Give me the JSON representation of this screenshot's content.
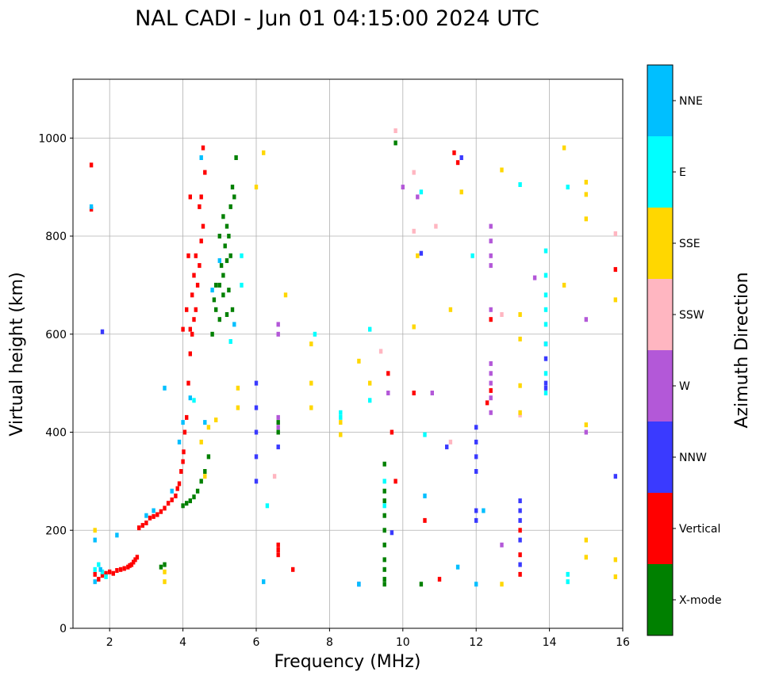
{
  "chart_data": {
    "type": "scatter",
    "title": "NAL CADI - Jun 01 04:15:00 2024 UTC",
    "xlabel": "Frequency (MHz)",
    "ylabel": "Virtual height (km)",
    "xlim": [
      1,
      16
    ],
    "ylim": [
      0,
      1120
    ],
    "xticks": [
      2,
      4,
      6,
      8,
      10,
      12,
      14,
      16
    ],
    "yticks": [
      0,
      200,
      400,
      600,
      800,
      1000
    ],
    "grid": true,
    "colorbar": {
      "label": "Azimuth Direction",
      "categories": [
        {
          "name": "X-mode",
          "color": "#008000"
        },
        {
          "name": "Vertical",
          "color": "#ff0000"
        },
        {
          "name": "NNW",
          "color": "#3a3aff"
        },
        {
          "name": "W",
          "color": "#b358d8"
        },
        {
          "name": "SSW",
          "color": "#ffb6c1"
        },
        {
          "name": "SSE",
          "color": "#ffd700"
        },
        {
          "name": "E",
          "color": "#00ffff"
        },
        {
          "name": "NNE",
          "color": "#00bfff"
        }
      ]
    },
    "series": [
      {
        "name": "Vertical",
        "points": [
          [
            1.5,
            945
          ],
          [
            1.5,
            855
          ],
          [
            1.6,
            110
          ],
          [
            1.7,
            100
          ],
          [
            1.8,
            108
          ],
          [
            1.9,
            112
          ],
          [
            2.0,
            115
          ],
          [
            2.1,
            112
          ],
          [
            2.2,
            118
          ],
          [
            2.3,
            120
          ],
          [
            2.4,
            122
          ],
          [
            2.5,
            125
          ],
          [
            2.55,
            128
          ],
          [
            2.6,
            130
          ],
          [
            2.65,
            135
          ],
          [
            2.7,
            140
          ],
          [
            2.75,
            145
          ],
          [
            2.8,
            205
          ],
          [
            2.9,
            210
          ],
          [
            3.0,
            215
          ],
          [
            3.1,
            225
          ],
          [
            3.2,
            228
          ],
          [
            3.3,
            232
          ],
          [
            3.4,
            238
          ],
          [
            3.5,
            245
          ],
          [
            3.6,
            255
          ],
          [
            3.7,
            262
          ],
          [
            3.8,
            270
          ],
          [
            3.85,
            285
          ],
          [
            3.9,
            295
          ],
          [
            3.95,
            320
          ],
          [
            4.0,
            340
          ],
          [
            4.02,
            360
          ],
          [
            4.05,
            400
          ],
          [
            4.1,
            430
          ],
          [
            4.15,
            500
          ],
          [
            4.2,
            560
          ],
          [
            4.25,
            600
          ],
          [
            4.3,
            630
          ],
          [
            4.35,
            650
          ],
          [
            4.4,
            700
          ],
          [
            4.45,
            740
          ],
          [
            4.5,
            790
          ],
          [
            4.55,
            820
          ],
          [
            4.5,
            880
          ],
          [
            4.6,
            930
          ],
          [
            4.55,
            980
          ],
          [
            4.2,
            880
          ],
          [
            4.3,
            720
          ],
          [
            4.1,
            650
          ],
          [
            4.25,
            680
          ],
          [
            4.35,
            760
          ],
          [
            4.45,
            860
          ],
          [
            4.0,
            610
          ],
          [
            4.15,
            760
          ],
          [
            4.2,
            610
          ],
          [
            6.6,
            160
          ],
          [
            6.6,
            150
          ],
          [
            6.6,
            170
          ],
          [
            7.0,
            120
          ],
          [
            9.6,
            520
          ],
          [
            9.7,
            400
          ],
          [
            9.8,
            300
          ],
          [
            10.3,
            480
          ],
          [
            10.6,
            220
          ],
          [
            11.0,
            100
          ],
          [
            11.4,
            970
          ],
          [
            11.5,
            950
          ],
          [
            12.3,
            460
          ],
          [
            12.4,
            630
          ],
          [
            12.4,
            485
          ],
          [
            13.2,
            150
          ],
          [
            13.2,
            110
          ],
          [
            13.2,
            200
          ],
          [
            15.8,
            732
          ]
        ]
      },
      {
        "name": "X-mode",
        "points": [
          [
            3.4,
            125
          ],
          [
            3.5,
            130
          ],
          [
            4.0,
            250
          ],
          [
            4.1,
            255
          ],
          [
            4.2,
            260
          ],
          [
            4.3,
            268
          ],
          [
            4.4,
            280
          ],
          [
            4.5,
            300
          ],
          [
            4.6,
            320
          ],
          [
            4.7,
            350
          ],
          [
            4.8,
            600
          ],
          [
            4.9,
            650
          ],
          [
            5.0,
            700
          ],
          [
            5.1,
            720
          ],
          [
            5.2,
            750
          ],
          [
            5.25,
            800
          ],
          [
            5.3,
            860
          ],
          [
            5.35,
            900
          ],
          [
            5.2,
            640
          ],
          [
            5.0,
            630
          ],
          [
            5.1,
            680
          ],
          [
            5.3,
            760
          ],
          [
            4.9,
            700
          ],
          [
            5.05,
            740
          ],
          [
            5.15,
            780
          ],
          [
            5.25,
            690
          ],
          [
            5.35,
            650
          ],
          [
            5.0,
            800
          ],
          [
            5.1,
            840
          ],
          [
            4.85,
            670
          ],
          [
            5.2,
            820
          ],
          [
            5.4,
            880
          ],
          [
            5.45,
            960
          ],
          [
            6.6,
            400
          ],
          [
            6.6,
            420
          ],
          [
            9.5,
            90
          ],
          [
            9.5,
            100
          ],
          [
            9.5,
            120
          ],
          [
            9.5,
            140
          ],
          [
            9.5,
            170
          ],
          [
            9.5,
            200
          ],
          [
            9.5,
            230
          ],
          [
            9.5,
            260
          ],
          [
            9.5,
            280
          ],
          [
            9.5,
            335
          ],
          [
            9.8,
            990
          ],
          [
            10.5,
            90
          ]
        ]
      },
      {
        "name": "NNW",
        "points": [
          [
            1.8,
            605
          ],
          [
            6.0,
            500
          ],
          [
            6.0,
            450
          ],
          [
            6.0,
            400
          ],
          [
            6.0,
            350
          ],
          [
            6.0,
            300
          ],
          [
            6.6,
            370
          ],
          [
            8.8,
            90
          ],
          [
            9.7,
            195
          ],
          [
            10.5,
            765
          ],
          [
            11.2,
            370
          ],
          [
            11.6,
            960
          ],
          [
            12.0,
            410
          ],
          [
            12.0,
            380
          ],
          [
            12.0,
            350
          ],
          [
            12.0,
            320
          ],
          [
            12.0,
            240
          ],
          [
            12.0,
            220
          ],
          [
            13.2,
            260
          ],
          [
            13.2,
            240
          ],
          [
            13.2,
            220
          ],
          [
            13.2,
            180
          ],
          [
            13.2,
            130
          ],
          [
            13.9,
            580
          ],
          [
            13.9,
            550
          ],
          [
            13.9,
            500
          ],
          [
            13.9,
            490
          ],
          [
            15.8,
            310
          ]
        ]
      },
      {
        "name": "W",
        "points": [
          [
            6.6,
            620
          ],
          [
            6.6,
            600
          ],
          [
            6.6,
            430
          ],
          [
            6.6,
            410
          ],
          [
            9.6,
            480
          ],
          [
            10.0,
            900
          ],
          [
            10.4,
            880
          ],
          [
            10.8,
            480
          ],
          [
            12.4,
            820
          ],
          [
            12.4,
            790
          ],
          [
            12.4,
            760
          ],
          [
            12.4,
            740
          ],
          [
            12.4,
            650
          ],
          [
            12.4,
            540
          ],
          [
            12.4,
            520
          ],
          [
            12.4,
            500
          ],
          [
            12.4,
            470
          ],
          [
            12.4,
            440
          ],
          [
            12.7,
            170
          ],
          [
            13.6,
            715
          ],
          [
            15.0,
            630
          ],
          [
            15.0,
            400
          ]
        ]
      },
      {
        "name": "SSW",
        "points": [
          [
            6.5,
            310
          ],
          [
            9.4,
            565
          ],
          [
            9.8,
            1015
          ],
          [
            10.3,
            930
          ],
          [
            10.3,
            810
          ],
          [
            10.9,
            820
          ],
          [
            11.3,
            380
          ],
          [
            12.7,
            640
          ],
          [
            13.2,
            435
          ],
          [
            15.8,
            805
          ]
        ]
      },
      {
        "name": "SSE",
        "points": [
          [
            1.6,
            200
          ],
          [
            3.5,
            95
          ],
          [
            3.5,
            115
          ],
          [
            4.6,
            310
          ],
          [
            4.5,
            380
          ],
          [
            4.7,
            410
          ],
          [
            4.9,
            425
          ],
          [
            5.5,
            450
          ],
          [
            5.5,
            490
          ],
          [
            6.2,
            970
          ],
          [
            6.0,
            900
          ],
          [
            6.8,
            680
          ],
          [
            7.5,
            450
          ],
          [
            7.5,
            500
          ],
          [
            7.5,
            580
          ],
          [
            8.3,
            420
          ],
          [
            8.3,
            395
          ],
          [
            8.8,
            545
          ],
          [
            9.1,
            500
          ],
          [
            10.3,
            615
          ],
          [
            10.4,
            760
          ],
          [
            11.3,
            650
          ],
          [
            11.6,
            890
          ],
          [
            12.7,
            935
          ],
          [
            12.7,
            90
          ],
          [
            13.2,
            590
          ],
          [
            13.2,
            640
          ],
          [
            13.2,
            495
          ],
          [
            13.2,
            440
          ],
          [
            14.4,
            980
          ],
          [
            14.4,
            700
          ],
          [
            15.0,
            910
          ],
          [
            15.0,
            885
          ],
          [
            15.0,
            835
          ],
          [
            15.0,
            415
          ],
          [
            15.0,
            180
          ],
          [
            15.0,
            145
          ],
          [
            15.8,
            670
          ],
          [
            15.8,
            140
          ],
          [
            15.8,
            105
          ]
        ]
      },
      {
        "name": "E",
        "points": [
          [
            1.6,
            120
          ],
          [
            1.7,
            130
          ],
          [
            1.8,
            115
          ],
          [
            1.9,
            105
          ],
          [
            4.3,
            465
          ],
          [
            5.3,
            585
          ],
          [
            5.6,
            700
          ],
          [
            5.6,
            760
          ],
          [
            6.3,
            250
          ],
          [
            7.6,
            600
          ],
          [
            8.3,
            440
          ],
          [
            8.3,
            430
          ],
          [
            9.1,
            610
          ],
          [
            9.1,
            465
          ],
          [
            9.5,
            300
          ],
          [
            9.5,
            250
          ],
          [
            10.5,
            890
          ],
          [
            10.6,
            395
          ],
          [
            11.9,
            760
          ],
          [
            13.2,
            905
          ],
          [
            13.9,
            770
          ],
          [
            13.9,
            720
          ],
          [
            13.9,
            680
          ],
          [
            13.9,
            650
          ],
          [
            13.9,
            620
          ],
          [
            13.9,
            580
          ],
          [
            13.9,
            520
          ],
          [
            13.9,
            480
          ],
          [
            14.5,
            900
          ],
          [
            14.5,
            110
          ],
          [
            14.5,
            95
          ]
        ]
      },
      {
        "name": "NNE",
        "points": [
          [
            1.5,
            860
          ],
          [
            1.6,
            180
          ],
          [
            1.6,
            95
          ],
          [
            1.75,
            120
          ],
          [
            2.2,
            190
          ],
          [
            3.0,
            230
          ],
          [
            3.2,
            240
          ],
          [
            3.5,
            490
          ],
          [
            3.7,
            280
          ],
          [
            3.9,
            380
          ],
          [
            4.0,
            420
          ],
          [
            4.2,
            470
          ],
          [
            4.5,
            960
          ],
          [
            4.6,
            420
          ],
          [
            4.8,
            690
          ],
          [
            5.0,
            750
          ],
          [
            5.4,
            620
          ],
          [
            6.2,
            95
          ],
          [
            8.8,
            90
          ],
          [
            10.6,
            270
          ],
          [
            11.5,
            125
          ],
          [
            12.0,
            90
          ],
          [
            12.2,
            240
          ]
        ]
      }
    ]
  }
}
